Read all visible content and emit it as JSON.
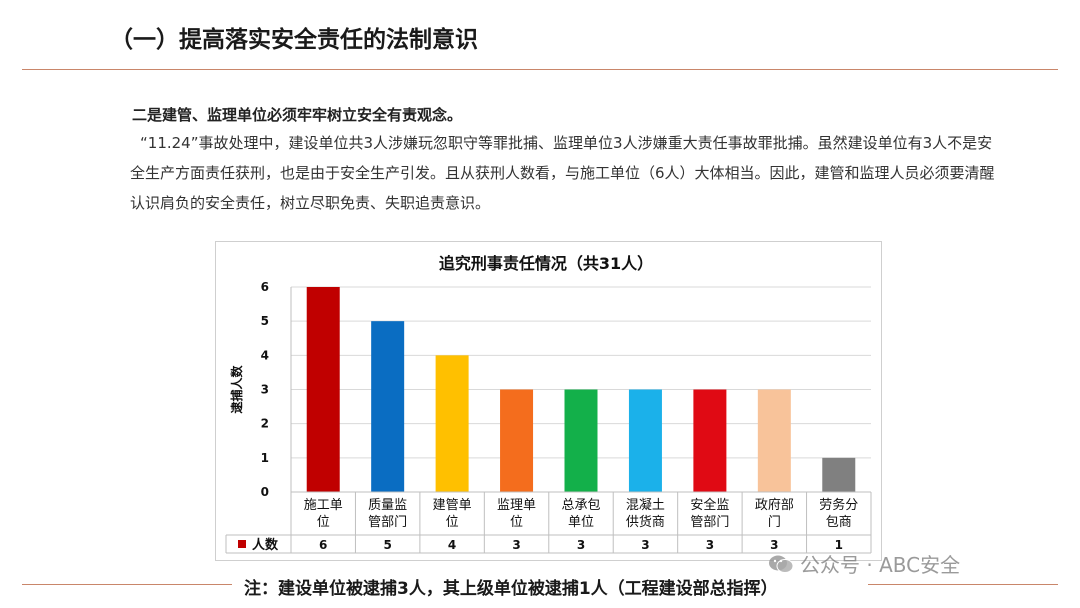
{
  "page": {
    "title": "（一）提高落实安全责任的法制意识",
    "heading": "二是建管、监理单位必须牢牢树立安全有责观念。",
    "paragraph": "“11.24”事故处理中，建设单位共3人涉嫌玩忽职守等罪批捕、监理单位3人涉嫌重大责任事故罪批捕。虽然建设单位有3人不是安全生产方面责任获刑，也是由于安全生产引发。且从获刑人数看，与施工单位（6人）大体相当。因此，建管和监理人员必须要清醒认识肩负的安全责任，树立尽职免责、失职追责意识。",
    "note": "注：建设单位被逮捕3人，其上级单位被逮捕1人（工程建设部总指挥）",
    "watermark": "公众号 · ABC安全",
    "watermark_icon": "wechat-icon",
    "rule_color": "#c9866a"
  },
  "chart_data": {
    "type": "bar",
    "title": "追究刑事责任情况（共31人）",
    "ylabel": "逮捕人数",
    "xlabel": "",
    "ylim": [
      0,
      6
    ],
    "yticks": [
      0,
      1,
      2,
      3,
      4,
      5,
      6
    ],
    "grid": true,
    "categories": [
      [
        "施工单",
        "位"
      ],
      [
        "质量监",
        "管部门"
      ],
      [
        "建管单",
        "位"
      ],
      [
        "监理单",
        "位"
      ],
      [
        "总承包",
        "单位"
      ],
      [
        "混凝土",
        "供货商"
      ],
      [
        "安全监",
        "管部门"
      ],
      [
        "政府部",
        "门"
      ],
      [
        "劳务分",
        "包商"
      ]
    ],
    "series": [
      {
        "name": "人数",
        "color": "#c00000",
        "values": [
          6,
          5,
          4,
          3,
          3,
          3,
          3,
          3,
          1
        ]
      }
    ],
    "colors": [
      "#c00000",
      "#0a6dc2",
      "#ffc000",
      "#f46d1d",
      "#13b04a",
      "#1bb1ea",
      "#e00a14",
      "#f8c39a",
      "#808080"
    ],
    "data_table": true
  }
}
